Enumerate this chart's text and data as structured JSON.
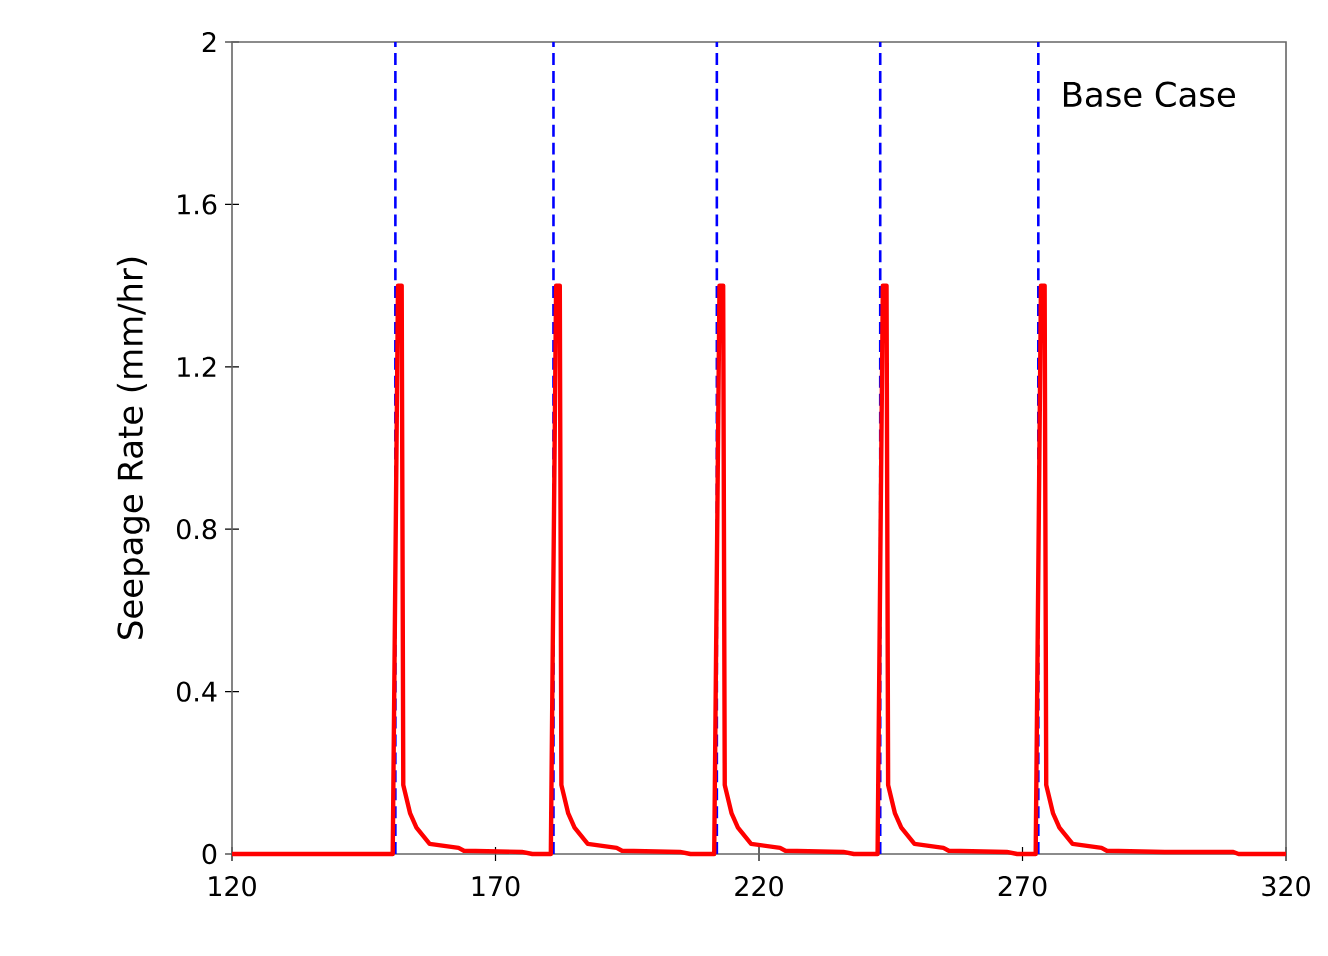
{
  "chart_data": {
    "type": "line",
    "ylabel": "Seepage Rate (mm/hr)",
    "annotations": [
      "Base Case"
    ],
    "xlim": [
      120,
      320
    ],
    "xticks": [
      120,
      170,
      220,
      270,
      320
    ],
    "ylim": [
      0,
      2
    ],
    "yticks": [
      0,
      0.4,
      0.8,
      1.2,
      1.6,
      2
    ],
    "grid": false,
    "marker": "none",
    "line_style": "solid",
    "ref_lines": [
      {
        "axis": "x",
        "value": 151,
        "color": "#0000ff",
        "line_style": "dashed"
      },
      {
        "axis": "x",
        "value": 181,
        "color": "#0000ff",
        "line_style": "dashed"
      },
      {
        "axis": "x",
        "value": 212,
        "color": "#0000ff",
        "line_style": "dashed"
      },
      {
        "axis": "x",
        "value": 243,
        "color": "#0000ff",
        "line_style": "dashed"
      },
      {
        "axis": "x",
        "value": 273,
        "color": "#0000ff",
        "line_style": "dashed"
      }
    ],
    "series": [
      {
        "color": "#ff0000",
        "x": [
          120,
          150.5,
          151.5,
          152.2,
          152.5,
          153.8,
          155,
          157.5,
          163,
          164,
          175,
          177,
          180.5,
          181.5,
          182.2,
          182.5,
          183.8,
          185,
          187.5,
          193,
          194,
          205,
          207,
          211.5,
          212.5,
          213.2,
          213.5,
          214.8,
          216,
          218.5,
          224,
          225,
          236,
          238,
          242.5,
          243.5,
          244.2,
          244.5,
          245.8,
          247,
          249.5,
          255,
          256,
          267,
          269,
          272.5,
          273.5,
          274.2,
          274.5,
          275.8,
          277,
          279.5,
          285,
          286,
          297,
          310,
          311,
          320
        ],
        "values": [
          0,
          0,
          1.4,
          1.4,
          0.17,
          0.1,
          0.065,
          0.025,
          0.015,
          0.008,
          0.005,
          0,
          0,
          1.4,
          1.4,
          0.17,
          0.1,
          0.065,
          0.025,
          0.015,
          0.008,
          0.005,
          0,
          0,
          1.4,
          1.4,
          0.17,
          0.1,
          0.065,
          0.025,
          0.015,
          0.008,
          0.005,
          0,
          0,
          1.4,
          1.4,
          0.17,
          0.1,
          0.065,
          0.025,
          0.015,
          0.008,
          0.005,
          0,
          0,
          1.4,
          1.4,
          0.17,
          0.1,
          0.065,
          0.025,
          0.015,
          0.008,
          0.005,
          0.005,
          0,
          0
        ]
      }
    ]
  }
}
